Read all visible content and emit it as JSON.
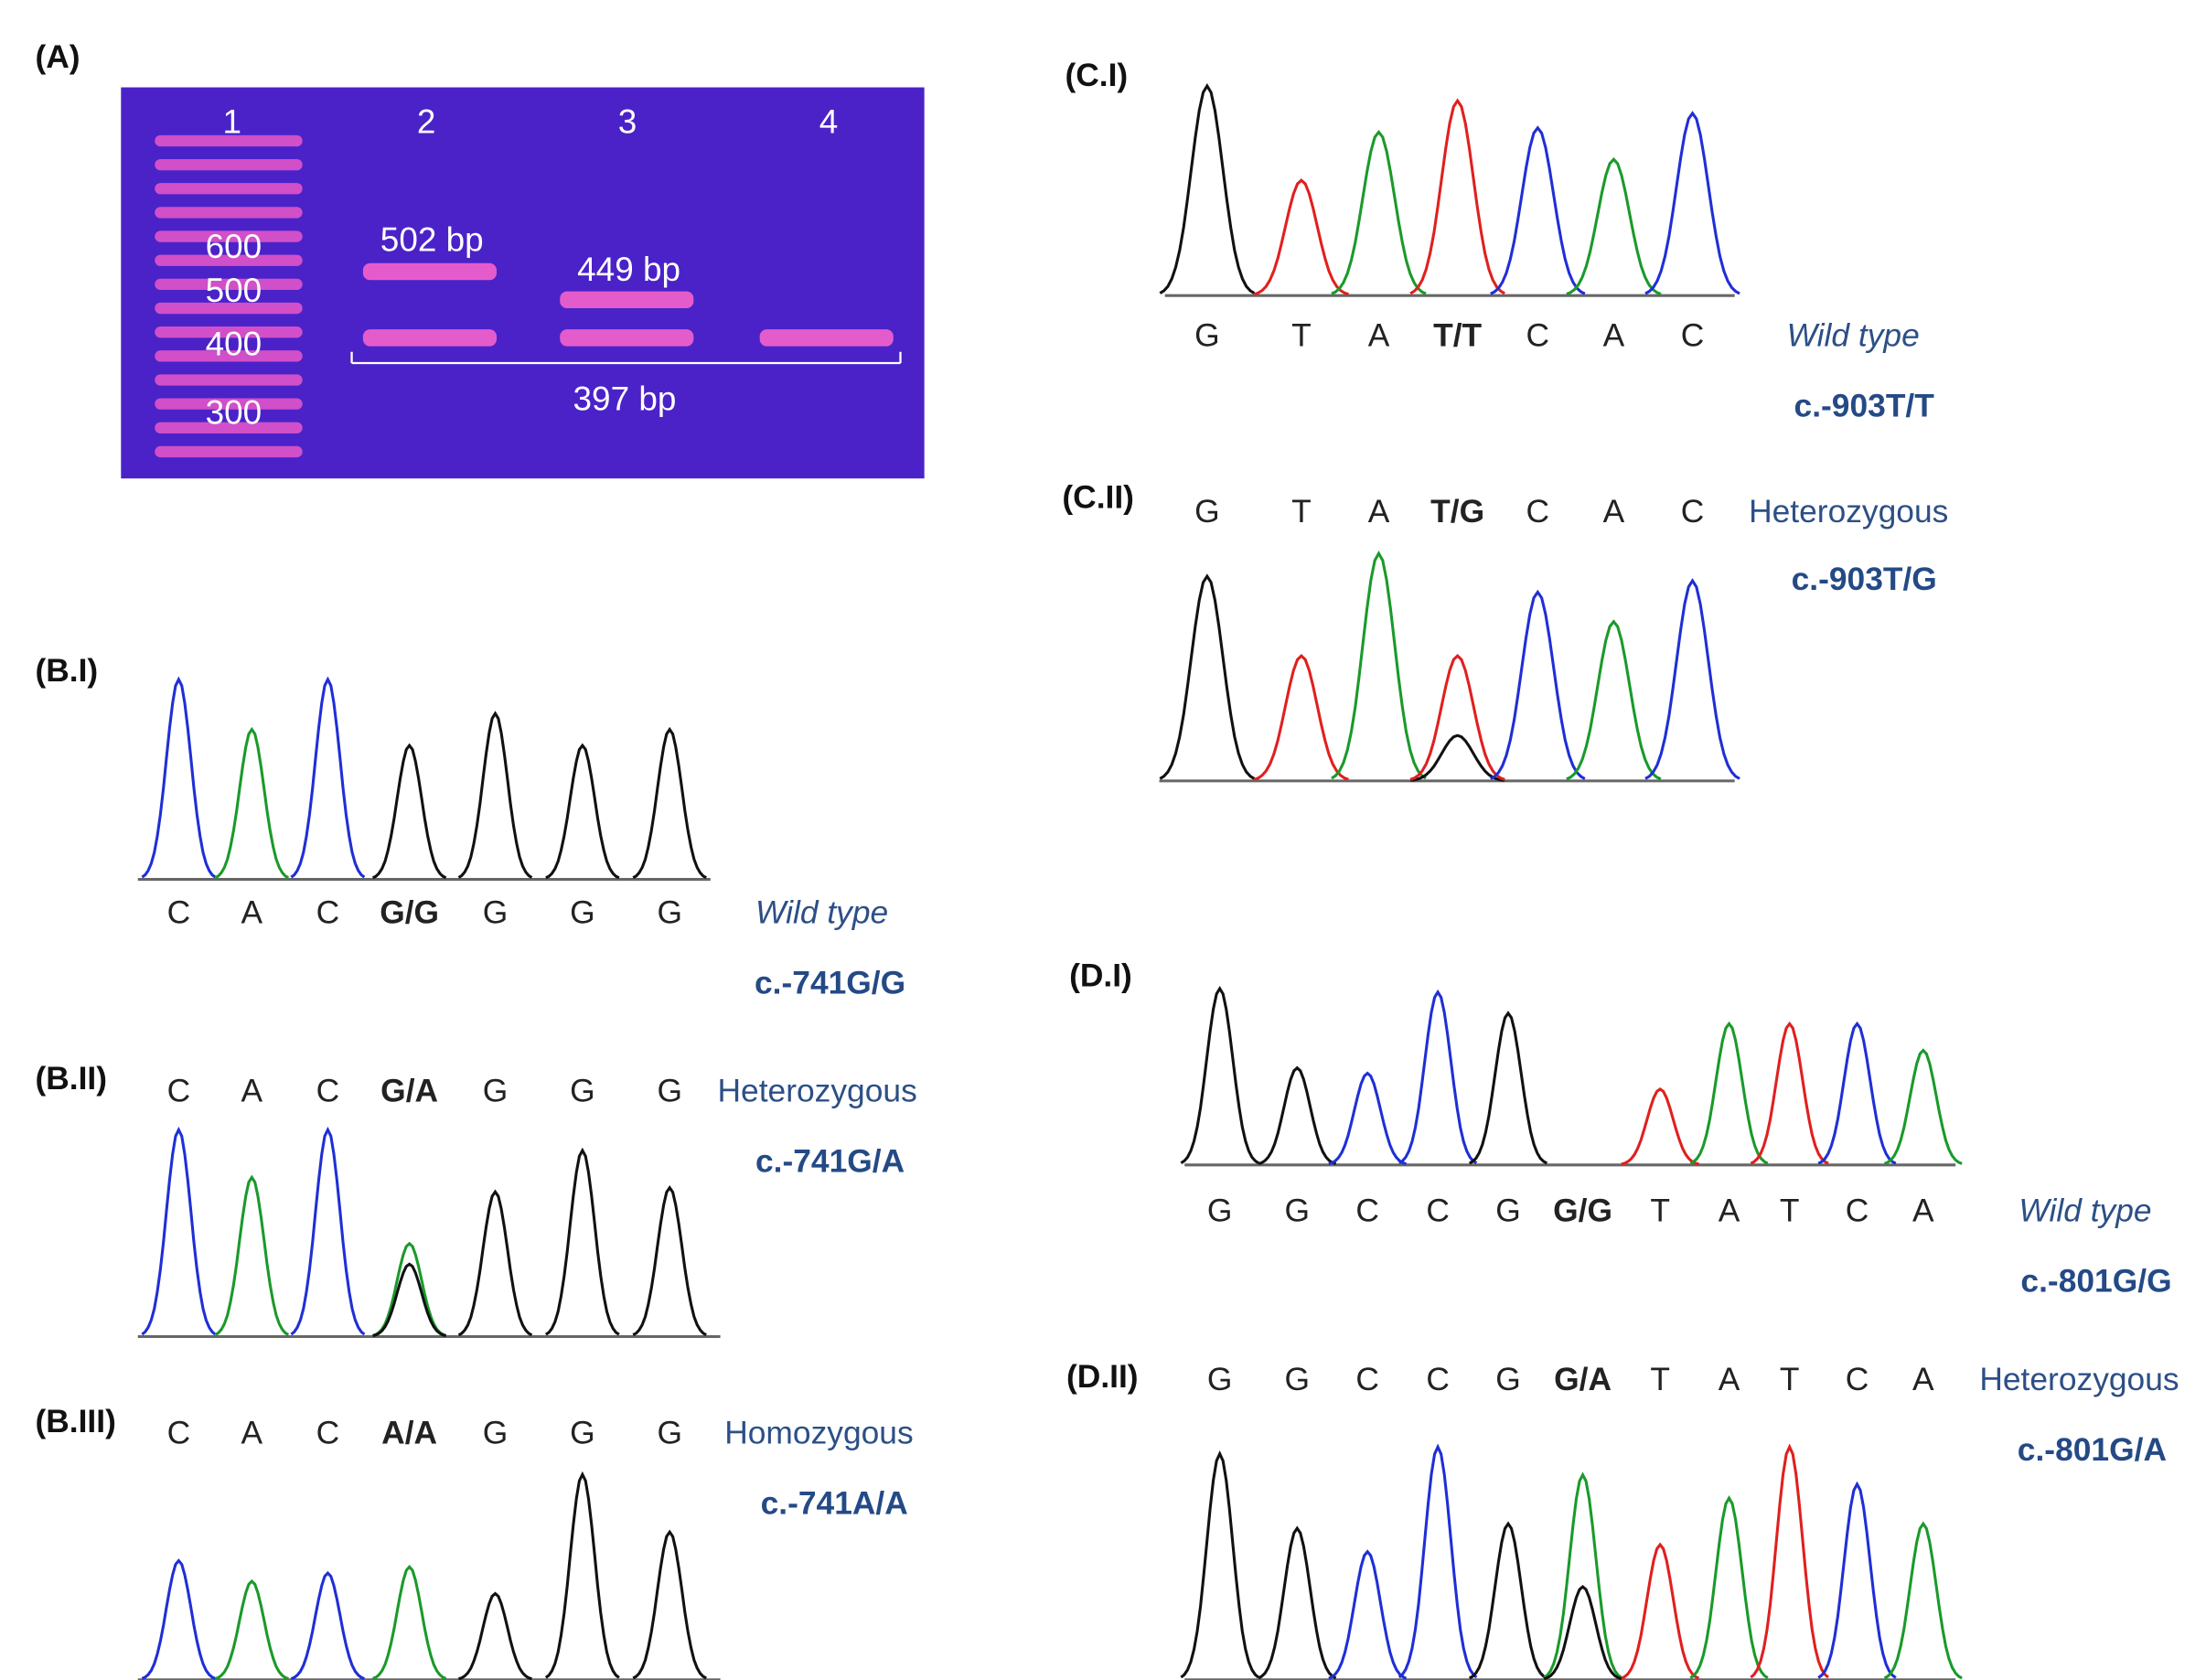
{
  "gel": {
    "label": "(A)",
    "lanes": [
      "1",
      "2",
      "3",
      "4"
    ],
    "ladder": [
      "600",
      "500",
      "400",
      "300"
    ],
    "bands": [
      "502 bp",
      "449 bp",
      "397 bp"
    ]
  },
  "panels": [
    {
      "label": "(B.I)",
      "bases": [
        "C",
        "A",
        "C",
        "G/G",
        "G",
        "G",
        "G"
      ],
      "genotype": "Wild type",
      "variant": "c.-741G/G"
    },
    {
      "label": "(B.II)",
      "bases": [
        "C",
        "A",
        "C",
        "G/A",
        "G",
        "G",
        "G"
      ],
      "genotype": "Heterozygous",
      "variant": "c.-741G/A"
    },
    {
      "label": "(B.III)",
      "bases": [
        "C",
        "A",
        "C",
        "A/A",
        "G",
        "G",
        "G"
      ],
      "genotype": "Homozygous",
      "variant": "c.-741A/A"
    },
    {
      "label": "(C.I)",
      "bases": [
        "G",
        "T",
        "A",
        "T/T",
        "C",
        "A",
        "C"
      ],
      "genotype": "Wild type",
      "variant": "c.-903T/T"
    },
    {
      "label": "(C.II)",
      "bases": [
        "G",
        "T",
        "A",
        "T/G",
        "C",
        "A",
        "C"
      ],
      "genotype": "Heterozygous",
      "variant": "c.-903T/G"
    },
    {
      "label": "(D.I)",
      "bases": [
        "G",
        "G",
        "C",
        "C",
        "G",
        "G/G",
        "T",
        "A",
        "T",
        "C",
        "A"
      ],
      "genotype": "Wild type",
      "variant": "c.-801G/G"
    },
    {
      "label": "(D.II)",
      "bases": [
        "G",
        "G",
        "C",
        "C",
        "G",
        "G/A",
        "T",
        "A",
        "T",
        "C",
        "A"
      ],
      "genotype": "Heterozygous",
      "variant": "c.-801G/A"
    }
  ]
}
